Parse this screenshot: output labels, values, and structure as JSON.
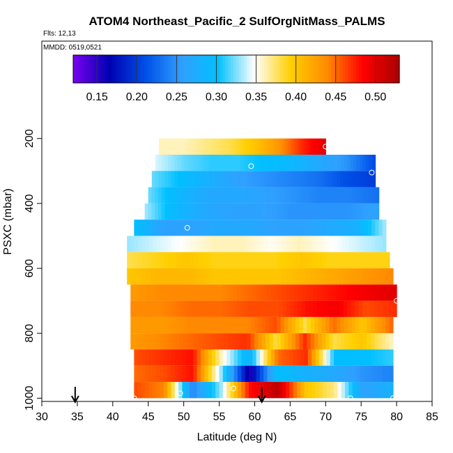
{
  "chart_data": {
    "type": "heatmap",
    "title": "ATOM4 Northeast_Pacific_2 SulfOrgNitMass_PALMS",
    "flights_label": "Flts: 12,13",
    "dates_label": "MMDD: 0519,0521",
    "xlabel": "Latitude (deg N)",
    "ylabel": "PSXC (mbar)",
    "xlim": [
      30,
      85
    ],
    "ylim": [
      1010,
      -100
    ],
    "x_ticks": [
      "30",
      "35",
      "40",
      "45",
      "50",
      "55",
      "60",
      "65",
      "70",
      "75",
      "80",
      "85"
    ],
    "y_ticks": [
      "200",
      "400",
      "600",
      "800",
      "1000"
    ],
    "colorbar": {
      "range": [
        0.12,
        0.53
      ],
      "tick_labels": [
        "0.15",
        "0.20",
        "0.25",
        "0.30",
        "0.35",
        "0.40",
        "0.45",
        "0.50"
      ],
      "tick_values": [
        0.15,
        0.2,
        0.25,
        0.3,
        0.35,
        0.4,
        0.45,
        0.5
      ]
    },
    "colors": {
      "ramp": [
        "#7a00f0",
        "#0000b0",
        "#0050e8",
        "#30a0ff",
        "#00c0ff",
        "#ffffff",
        "#ffd000",
        "#ff8c00",
        "#ff0000",
        "#aa0000"
      ]
    },
    "rows": [
      {
        "p": 225,
        "lat": [
          46.5,
          70.0
        ],
        "v": [
          0.36,
          0.36,
          0.37,
          0.38,
          0.4,
          0.43,
          0.47,
          0.5
        ]
      },
      {
        "p": 275,
        "lat": [
          46.0,
          77.0
        ],
        "v": [
          0.34,
          0.32,
          0.31,
          0.31,
          0.3,
          0.29,
          0.27,
          0.25,
          0.21
        ]
      },
      {
        "p": 325,
        "lat": [
          45.5,
          77.0
        ],
        "v": [
          0.32,
          0.3,
          0.28,
          0.26,
          0.25,
          0.24,
          0.23,
          0.21,
          0.2
        ]
      },
      {
        "p": 375,
        "lat": [
          45.0,
          77.5
        ],
        "v": [
          0.32,
          0.29,
          0.27,
          0.27,
          0.26,
          0.25,
          0.24,
          0.24,
          0.23
        ]
      },
      {
        "p": 425,
        "lat": [
          44.5,
          77.5
        ],
        "v": [
          0.33,
          0.29,
          0.27,
          0.26,
          0.26,
          0.25,
          0.25,
          0.25,
          0.26
        ]
      },
      {
        "p": 475,
        "lat": [
          43.0,
          78.5
        ],
        "v": [
          0.3,
          0.26,
          0.26,
          0.27,
          0.27,
          0.26,
          0.26,
          0.27,
          0.28,
          0.33
        ]
      },
      {
        "p": 525,
        "lat": [
          42.0,
          78.5
        ],
        "v": [
          0.33,
          0.34,
          0.35,
          0.36,
          0.36,
          0.35,
          0.36,
          0.35,
          0.34,
          0.33
        ]
      },
      {
        "p": 575,
        "lat": [
          42.0,
          79.0
        ],
        "v": [
          0.38,
          0.39,
          0.4,
          0.39,
          0.39,
          0.39,
          0.4,
          0.39,
          0.39,
          0.39
        ]
      },
      {
        "p": 625,
        "lat": [
          42.0,
          79.5
        ],
        "v": [
          0.4,
          0.41,
          0.41,
          0.4,
          0.4,
          0.4,
          0.41,
          0.42,
          0.43,
          0.44
        ]
      },
      {
        "p": 675,
        "lat": [
          42.5,
          80.0
        ],
        "v": [
          0.43,
          0.44,
          0.44,
          0.44,
          0.45,
          0.46,
          0.47,
          0.48,
          0.49,
          0.5
        ]
      },
      {
        "p": 725,
        "lat": [
          42.5,
          80.0
        ],
        "v": [
          0.44,
          0.44,
          0.45,
          0.45,
          0.46,
          0.46,
          0.48,
          0.49,
          0.46,
          0.47
        ]
      },
      {
        "p": 775,
        "lat": [
          42.5,
          79.5
        ],
        "v": [
          0.43,
          0.43,
          0.44,
          0.44,
          0.44,
          0.46,
          0.38,
          0.45,
          0.4,
          0.45
        ]
      },
      {
        "p": 825,
        "lat": [
          42.5,
          79.5
        ],
        "v": [
          0.43,
          0.44,
          0.45,
          0.46,
          0.47,
          0.38,
          0.47,
          0.38,
          0.4,
          0.36
        ]
      },
      {
        "p": 875,
        "lat": [
          43.0,
          79.5
        ],
        "v": [
          0.46,
          0.47,
          0.48,
          0.36,
          0.28,
          0.45,
          0.47,
          0.3,
          0.3,
          0.31
        ]
      },
      {
        "p": 925,
        "lat": [
          43.0,
          79.5
        ],
        "v": [
          0.45,
          0.46,
          0.48,
          0.33,
          0.15,
          0.3,
          0.28,
          0.27,
          0.25,
          0.24
        ]
      },
      {
        "p": 975,
        "lat": [
          43.0,
          79.5
        ],
        "v": [
          0.46,
          0.44,
          0.24,
          0.33,
          0.48,
          0.52,
          0.4,
          0.37,
          0.26,
          0.28
        ]
      }
    ],
    "flight_markers": [
      {
        "lat": 70.0,
        "p": 225
      },
      {
        "lat": 59.5,
        "p": 285
      },
      {
        "lat": 76.5,
        "p": 305
      },
      {
        "lat": 50.5,
        "p": 475
      },
      {
        "lat": 80.0,
        "p": 700
      },
      {
        "lat": 43.0,
        "p": 1000
      },
      {
        "lat": 49.5,
        "p": 985
      },
      {
        "lat": 57.0,
        "p": 970
      },
      {
        "lat": 73.5,
        "p": 1000
      },
      {
        "lat": 79.5,
        "p": 1000
      }
    ],
    "arrows": [
      {
        "lat": 34.7
      },
      {
        "lat": 61.0
      }
    ]
  }
}
